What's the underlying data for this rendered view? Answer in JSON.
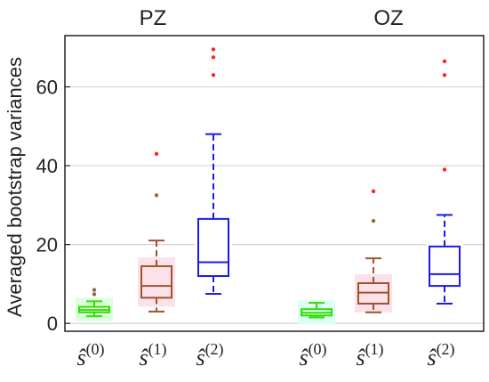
{
  "chart_data": {
    "type": "box",
    "ylabel": "Averaged bootstrap variances",
    "ylim": [
      -2,
      73
    ],
    "yticks": [
      0,
      20,
      40,
      60
    ],
    "grid": "horizontal",
    "groups": [
      {
        "title": "PZ",
        "boxes": [
          {
            "label_base": "ŝ",
            "label_sup": "(0)",
            "color": "#33dd00",
            "fill": "#ddffdd",
            "whisker_low": 1.8,
            "q1": 2.8,
            "median": 3.4,
            "q3": 4.2,
            "whisker_high": 5.6,
            "outliers": [
              7.4,
              8.5
            ],
            "outlier_color": "#8b6a4a"
          },
          {
            "label_base": "ŝ",
            "label_sup": "(1)",
            "color": "#a0522d",
            "fill": "#fbe2ea",
            "whisker_low": 3.0,
            "q1": 6.5,
            "median": 9.5,
            "q3": 14.5,
            "whisker_high": 21.0,
            "outliers": [
              32.5,
              43.0
            ],
            "outlier_color_list": [
              "#a06a2a",
              "#ff2222"
            ]
          },
          {
            "label_base": "ŝ",
            "label_sup": "(2)",
            "color": "#1a1aee",
            "fill": "#ffffff",
            "whisker_low": 7.5,
            "q1": 12.0,
            "median": 15.5,
            "q3": 26.5,
            "whisker_high": 48.0,
            "outliers": [
              63.0,
              67.5,
              69.5
            ],
            "outlier_color": "#ff2222"
          }
        ]
      },
      {
        "title": "OZ",
        "boxes": [
          {
            "label_base": "ŝ",
            "label_sup": "(0)",
            "color": "#33dd00",
            "fill": "#ddfff5",
            "whisker_low": 1.5,
            "q1": 2.0,
            "median": 2.7,
            "q3": 3.6,
            "whisker_high": 5.2,
            "outliers": [],
            "outlier_color": "#ff2222"
          },
          {
            "label_base": "ŝ",
            "label_sup": "(1)",
            "color": "#a0522d",
            "fill": "#fbe2ea",
            "whisker_low": 2.8,
            "q1": 5.0,
            "median": 7.8,
            "q3": 10.2,
            "whisker_high": 16.5,
            "outliers": [
              26.0,
              33.5
            ],
            "outlier_color_list": [
              "#a06a2a",
              "#ff2222"
            ]
          },
          {
            "label_base": "ŝ",
            "label_sup": "(2)",
            "color": "#1a1aee",
            "fill": "#ffffff",
            "whisker_low": 5.0,
            "q1": 9.5,
            "median": 12.5,
            "q3": 19.5,
            "whisker_high": 27.5,
            "outliers": [
              39.0,
              63.0,
              66.5
            ],
            "outlier_color": "#ff2222"
          }
        ]
      }
    ]
  }
}
